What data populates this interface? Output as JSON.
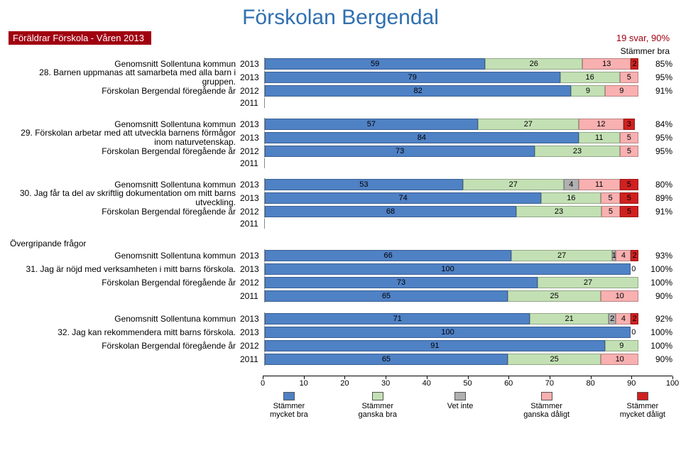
{
  "title": "Förskolan Bergendal",
  "banner_left": "Föräldrar Förskola - Våren 2013",
  "banner_right": "19 svar, 90%",
  "stammer_bra": "Stämmer bra",
  "overgripande": "Övergripande frågor",
  "colors": {
    "mbra": "#4f81c5",
    "gbra": "#c3e0b4",
    "vet": "#b0b0b0",
    "gdal": "#f8b0b0",
    "mdal": "#d02020",
    "banner": "#a00010",
    "title": "#3070b0"
  },
  "legend": [
    {
      "c": "mbra",
      "l1": "Stämmer",
      "l2": "mycket bra"
    },
    {
      "c": "gbra",
      "l1": "Stämmer",
      "l2": "ganska bra"
    },
    {
      "c": "vet",
      "l1": "Vet inte",
      "l2": ""
    },
    {
      "c": "gdal",
      "l1": "Stämmer",
      "l2": "ganska dåligt"
    },
    {
      "c": "mdal",
      "l1": "Stämmer",
      "l2": "mycket dåligt"
    }
  ],
  "axis_ticks": [
    0,
    10,
    20,
    30,
    40,
    50,
    60,
    70,
    80,
    90,
    100
  ],
  "groups": [
    {
      "question": "28. Barnen uppmanas att samarbeta med alla barn i gruppen.",
      "rows": [
        {
          "label": "Genomsnitt Sollentuna kommun",
          "year": "2013",
          "segs": [
            [
              "mbra",
              59
            ],
            [
              "gbra",
              26
            ],
            [
              "gdal",
              13
            ],
            [
              "mdal",
              2
            ]
          ],
          "pct": "85%"
        },
        {
          "label": "",
          "year": "2013",
          "segs": [
            [
              "mbra",
              79
            ],
            [
              "gbra",
              16
            ],
            [
              "gdal",
              5
            ]
          ],
          "pct": "95%",
          "is_q": true
        },
        {
          "label": "Förskolan Bergendal föregående år",
          "year": "2012",
          "segs": [
            [
              "mbra",
              82
            ],
            [
              "gbra",
              9
            ],
            [
              "gdal",
              9
            ]
          ],
          "pct": "91%"
        },
        {
          "label": "",
          "year": "2011",
          "segs": [],
          "pct": ""
        }
      ]
    },
    {
      "question": "29. Förskolan arbetar med att utveckla barnens förmågor inom naturvetenskap.",
      "rows": [
        {
          "label": "Genomsnitt Sollentuna kommun",
          "year": "2013",
          "segs": [
            [
              "mbra",
              57
            ],
            [
              "gbra",
              27
            ],
            [
              "gdal",
              12
            ],
            [
              "mdal",
              3
            ]
          ],
          "pct": "84%"
        },
        {
          "label": "",
          "year": "2013",
          "segs": [
            [
              "mbra",
              84
            ],
            [
              "gbra",
              11
            ],
            [
              "gdal",
              5
            ]
          ],
          "pct": "95%",
          "is_q": true
        },
        {
          "label": "Förskolan Bergendal föregående år",
          "year": "2012",
          "segs": [
            [
              "mbra",
              73
            ],
            [
              "gbra",
              23
            ],
            [
              "gdal",
              5
            ]
          ],
          "pct": "95%"
        },
        {
          "label": "",
          "year": "2011",
          "segs": [],
          "pct": ""
        }
      ]
    },
    {
      "question": "30. Jag får ta del av skriftlig dokumentation om mitt barns utveckling.",
      "rows": [
        {
          "label": "Genomsnitt Sollentuna kommun",
          "year": "2013",
          "segs": [
            [
              "mbra",
              53
            ],
            [
              "gbra",
              27
            ],
            [
              "vet",
              4
            ],
            [
              "gdal",
              11
            ],
            [
              "mdal",
              5
            ]
          ],
          "pct": "80%"
        },
        {
          "label": "",
          "year": "2013",
          "segs": [
            [
              "mbra",
              74
            ],
            [
              "gbra",
              16
            ],
            [
              "gdal",
              5
            ],
            [
              "mdal",
              5
            ]
          ],
          "pct": "89%",
          "is_q": true
        },
        {
          "label": "Förskolan Bergendal föregående år",
          "year": "2012",
          "segs": [
            [
              "mbra",
              68
            ],
            [
              "gbra",
              23
            ],
            [
              "gdal",
              5
            ],
            [
              "mdal",
              5
            ]
          ],
          "pct": "91%"
        },
        {
          "label": "",
          "year": "2011",
          "segs": [],
          "pct": ""
        }
      ]
    },
    {
      "question": "31. Jag är nöjd med verksamheten i mitt barns förskola.",
      "section": "over",
      "rows": [
        {
          "label": "Genomsnitt Sollentuna kommun",
          "year": "2013",
          "segs": [
            [
              "mbra",
              66
            ],
            [
              "gbra",
              27
            ],
            [
              "vet",
              1
            ],
            [
              "gdal",
              4
            ],
            [
              "mdal",
              2
            ]
          ],
          "pct": "93%"
        },
        {
          "label": "",
          "year": "2013",
          "segs": [
            [
              "mbra",
              100
            ]
          ],
          "pct": "100%",
          "is_q": true,
          "trailing": "0"
        },
        {
          "label": "Förskolan Bergendal föregående år",
          "year": "2012",
          "segs": [
            [
              "mbra",
              73
            ],
            [
              "gbra",
              27
            ]
          ],
          "pct": "100%"
        },
        {
          "label": "",
          "year": "2011",
          "segs": [
            [
              "mbra",
              65
            ],
            [
              "gbra",
              25
            ],
            [
              "gdal",
              10
            ]
          ],
          "pct": "90%"
        }
      ]
    },
    {
      "question": "32. Jag kan rekommendera mitt barns förskola.",
      "rows": [
        {
          "label": "Genomsnitt Sollentuna kommun",
          "year": "2013",
          "segs": [
            [
              "mbra",
              71
            ],
            [
              "gbra",
              21
            ],
            [
              "vet",
              2
            ],
            [
              "gdal",
              4
            ],
            [
              "mdal",
              2
            ]
          ],
          "pct": "92%"
        },
        {
          "label": "",
          "year": "2013",
          "segs": [
            [
              "mbra",
              100
            ]
          ],
          "pct": "100%",
          "is_q": true,
          "trailing": "0"
        },
        {
          "label": "Förskolan Bergendal föregående år",
          "year": "2012",
          "segs": [
            [
              "mbra",
              91
            ],
            [
              "gbra",
              9
            ]
          ],
          "pct": "100%"
        },
        {
          "label": "",
          "year": "2011",
          "segs": [
            [
              "mbra",
              65
            ],
            [
              "gbra",
              25
            ],
            [
              "gdal",
              10
            ]
          ],
          "pct": "90%"
        }
      ]
    }
  ]
}
